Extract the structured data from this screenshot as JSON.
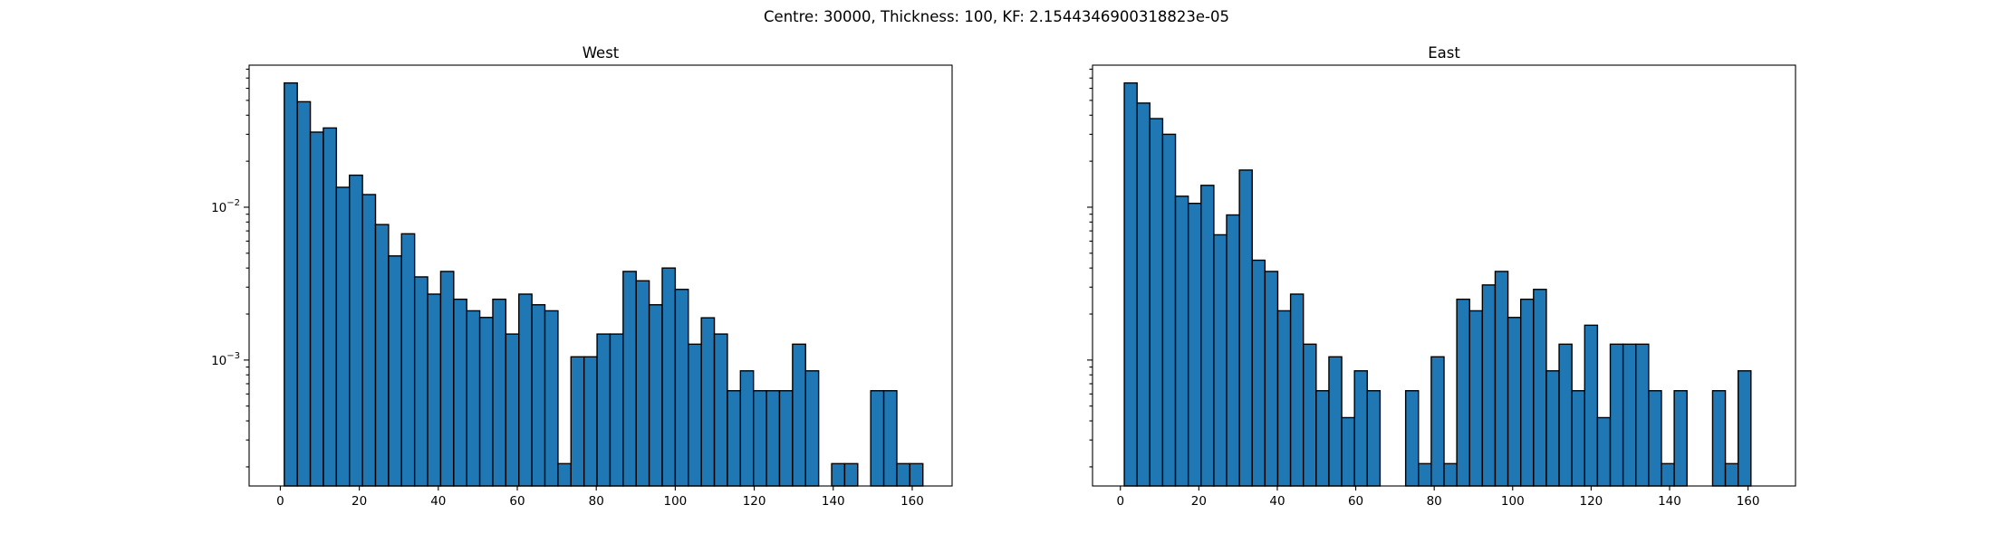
{
  "figure": {
    "suptitle": "Centre: 30000, Thickness: 100, KF: 2.1544346900318823e-05",
    "bar_color": "#1f77b4",
    "edge_color": "#000000"
  },
  "chart_data": [
    {
      "type": "bar",
      "title": "West",
      "xlabel": "",
      "ylabel": "",
      "x_scale": "linear",
      "y_scale": "log",
      "xlim": [
        -7.9,
        170.1
      ],
      "ylim": [
        0.00015,
        0.085
      ],
      "xticks": [
        0,
        20,
        40,
        60,
        80,
        100,
        120,
        140,
        160
      ],
      "yticks": [
        {
          "value": 0.01,
          "base": "10",
          "exp": "−2"
        },
        {
          "value": 0.001,
          "base": "10",
          "exp": "−3"
        }
      ],
      "bin_start": 1,
      "bin_width": 3.3,
      "values": [
        0.065,
        0.049,
        0.031,
        0.033,
        0.0135,
        0.0162,
        0.0121,
        0.0077,
        0.0048,
        0.0067,
        0.0035,
        0.0027,
        0.0038,
        0.0025,
        0.0021,
        0.0019,
        0.0025,
        0.00148,
        0.0027,
        0.0023,
        0.0021,
        0.00021,
        0.00105,
        0.00105,
        0.00148,
        0.00148,
        0.0038,
        0.0033,
        0.0023,
        0.004,
        0.0029,
        0.00127,
        0.00189,
        0.00148,
        0.00063,
        0.00085,
        0.00063,
        0.00063,
        0.00063,
        0.00127,
        0.00085,
        0,
        0.00021,
        0.00021,
        0,
        0.00063,
        0.00063,
        0.00021,
        0.00021
      ],
      "grid": false,
      "legend": "none"
    },
    {
      "type": "bar",
      "title": "East",
      "xlabel": "",
      "ylabel": "",
      "x_scale": "linear",
      "y_scale": "log",
      "xlim": [
        -7.1,
        172.1
      ],
      "ylim": [
        0.00015,
        0.085
      ],
      "xticks": [
        0,
        20,
        40,
        60,
        80,
        100,
        120,
        140,
        160
      ],
      "yticks": [
        {
          "value": 0.01,
          "base": "10",
          "exp": "−2"
        },
        {
          "value": 0.001,
          "base": "10",
          "exp": "−3"
        }
      ],
      "bin_start": 1,
      "bin_width": 3.26,
      "values": [
        0.065,
        0.048,
        0.038,
        0.03,
        0.0118,
        0.0106,
        0.0139,
        0.0066,
        0.0089,
        0.0175,
        0.0045,
        0.0038,
        0.0021,
        0.0027,
        0.00127,
        0.00063,
        0.00105,
        0.00042,
        0.00085,
        0.00063,
        0,
        0,
        0.00063,
        0.00021,
        0.00105,
        0.00021,
        0.0025,
        0.0021,
        0.0031,
        0.0038,
        0.0019,
        0.0025,
        0.0029,
        0.00085,
        0.00127,
        0.00063,
        0.00169,
        0.00042,
        0.00127,
        0.00127,
        0.00127,
        0.00063,
        0.00021,
        0.00063,
        0,
        0,
        0.00063,
        0.00021,
        0.00085
      ],
      "grid": false,
      "legend": "none"
    }
  ]
}
